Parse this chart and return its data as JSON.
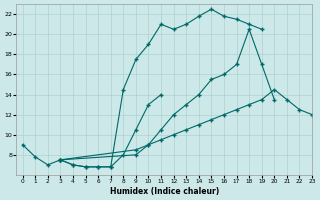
{
  "bg_color": "#cce8e8",
  "grid_color": "#b0d0d0",
  "line_color": "#006868",
  "xlabel": "Humidex (Indice chaleur)",
  "xlim": [
    -0.5,
    23
  ],
  "ylim": [
    6,
    23
  ],
  "xtick_labels": [
    "0",
    "1",
    "2",
    "3",
    "4",
    "5",
    "6",
    "7",
    "8",
    "9",
    "10",
    "11",
    "12",
    "13",
    "14",
    "15",
    "16",
    "17",
    "18",
    "19",
    "20",
    "21",
    "22",
    "23"
  ],
  "ytick_vals": [
    8,
    10,
    12,
    14,
    16,
    18,
    20,
    22
  ],
  "s1_x": [
    0,
    1,
    2,
    3,
    4,
    5,
    6,
    7,
    8,
    9,
    10,
    11,
    12,
    13,
    14,
    15,
    16,
    17,
    18,
    19
  ],
  "s1_y": [
    9,
    7.8,
    7,
    7.5,
    7,
    6.8,
    6.8,
    6.8,
    14.5,
    17.5,
    19.0,
    21.0,
    20.5,
    21.0,
    21.8,
    22.5,
    21.8,
    21.5,
    21.0,
    20.5
  ],
  "s2_x": [
    3,
    4,
    5,
    6,
    7,
    8,
    9,
    10,
    11
  ],
  "s2_y": [
    7.5,
    7.0,
    6.8,
    6.8,
    6.8,
    8.0,
    10.5,
    13.0,
    14.0
  ],
  "s3_x": [
    3,
    9,
    10,
    11,
    12,
    13,
    14,
    15,
    16,
    17,
    18,
    19,
    20
  ],
  "s3_y": [
    7.5,
    8.0,
    9.0,
    10.5,
    12.0,
    13.0,
    14.0,
    15.5,
    16.0,
    17.0,
    20.5,
    17.0,
    13.5
  ],
  "s4_x": [
    3,
    9,
    10,
    11,
    12,
    13,
    14,
    15,
    16,
    17,
    18,
    19,
    20,
    21,
    22,
    23
  ],
  "s4_y": [
    7.5,
    8.5,
    9.0,
    9.5,
    10.0,
    10.5,
    11.0,
    11.5,
    12.0,
    12.5,
    13.0,
    13.5,
    14.5,
    13.5,
    12.5,
    12.0
  ]
}
